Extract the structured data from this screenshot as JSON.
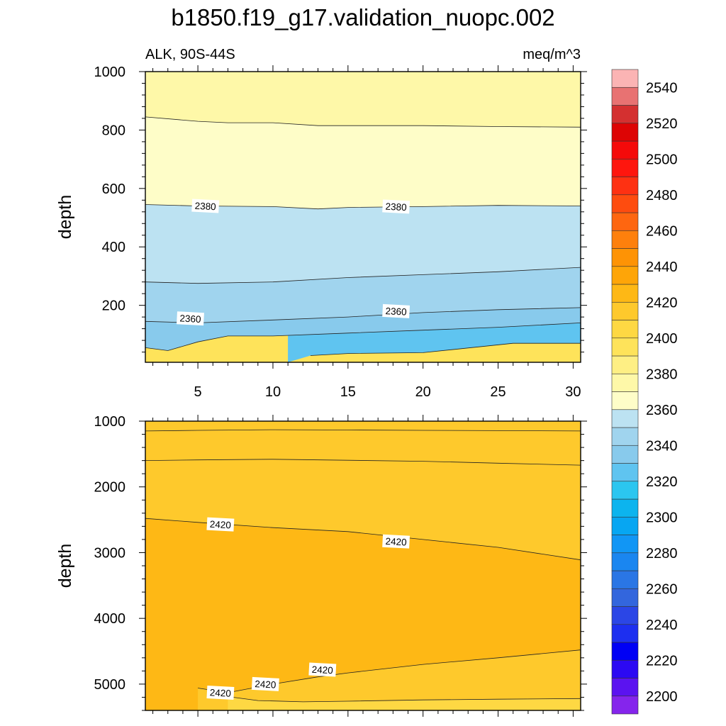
{
  "chart_data": {
    "type": "contour",
    "title": "b1850.f19_g17.validation_nuopc.002",
    "subtitle_left": "ALK, 90S-44S",
    "subtitle_right": "meq/m^3",
    "xlabel": "",
    "xlim": [
      1.5,
      30.5
    ],
    "x_ticks": [
      "5",
      "10",
      "15",
      "20",
      "25",
      "30"
    ],
    "colorbar": {
      "levels": [
        2200,
        2210,
        2220,
        2230,
        2240,
        2250,
        2260,
        2270,
        2280,
        2290,
        2300,
        2310,
        2320,
        2330,
        2340,
        2350,
        2360,
        2370,
        2380,
        2390,
        2400,
        2410,
        2420,
        2430,
        2440,
        2450,
        2460,
        2470,
        2480,
        2490,
        2500,
        2510,
        2520,
        2530,
        2540,
        2550
      ],
      "colors": [
        "#8525ec",
        "#5b13f0",
        "#2c09f3",
        "#0000f5",
        "#1d2ff0",
        "#2b46e6",
        "#3366dd",
        "#2a76e5",
        "#1a86f0",
        "#1196f5",
        "#07a6f2",
        "#0cb4ee",
        "#2bc6f0",
        "#5fc4f0",
        "#88caec",
        "#a0d4ee",
        "#bce2f2",
        "#fefdc8",
        "#fef8a8",
        "#feef84",
        "#fee35a",
        "#fed843",
        "#fec92c",
        "#feb815",
        "#fea508",
        "#fe9305",
        "#fe800c",
        "#fe6610",
        "#fe4c0f",
        "#fe3112",
        "#fe160e",
        "#f50a0a",
        "#dd0404",
        "#d43030",
        "#e87272",
        "#fbb4b4"
      ],
      "tick_labels": [
        "2200",
        "2220",
        "2240",
        "2260",
        "2280",
        "2300",
        "2320",
        "2340",
        "2360",
        "2380",
        "2400",
        "2420",
        "2440",
        "2460",
        "2480",
        "2500",
        "2520",
        "2540"
      ]
    },
    "panels": [
      {
        "name": "upper",
        "ylabel": "depth",
        "ylim": [
          1000,
          5
        ],
        "y_ticks": [
          "200",
          "400",
          "600",
          "800",
          "1000"
        ],
        "y_tick_values": [
          200,
          400,
          600,
          800,
          1000
        ],
        "x_tick_labels_shown": true,
        "base_color": "#fee35a",
        "contours": [
          {
            "value": 2345,
            "color": "#5fc4f0",
            "points": [
              [
                11,
                5
              ],
              [
                12.5,
                28
              ],
              [
                15,
                35
              ],
              [
                20,
                38
              ],
              [
                26,
                70
              ],
              [
                30.5,
                70
              ]
            ]
          },
          {
            "value": 2350,
            "color": "#88caec",
            "points": [
              [
                1.5,
                55
              ],
              [
                3,
                45
              ],
              [
                5,
                75
              ],
              [
                7,
                95
              ],
              [
                10,
                95
              ],
              [
                15,
                105
              ],
              [
                20,
                115
              ],
              [
                25,
                125
              ],
              [
                30.5,
                140
              ]
            ]
          },
          {
            "value": 2360,
            "color": "#a0d4ee",
            "points": [
              [
                1.5,
                145
              ],
              [
                5,
                140
              ],
              [
                10,
                150
              ],
              [
                15,
                160
              ],
              [
                20,
                175
              ],
              [
                25,
                185
              ],
              [
                30.5,
                192
              ]
            ]
          },
          {
            "value": 2370,
            "color": "#bce2f2",
            "points": [
              [
                1.5,
                280
              ],
              [
                5,
                275
              ],
              [
                10,
                280
              ],
              [
                15,
                295
              ],
              [
                20,
                305
              ],
              [
                25,
                315
              ],
              [
                30.5,
                330
              ]
            ]
          },
          {
            "value": 2380,
            "color": "#fefdc8",
            "points": [
              [
                1.5,
                545
              ],
              [
                5,
                540
              ],
              [
                10,
                538
              ],
              [
                13,
                530
              ],
              [
                15,
                535
              ],
              [
                20,
                538
              ],
              [
                25,
                542
              ],
              [
                30.5,
                540
              ]
            ]
          },
          {
            "value": 2390,
            "color": "#fef8a8",
            "points": [
              [
                1.5,
                845
              ],
              [
                5,
                830
              ],
              [
                7,
                825
              ],
              [
                10,
                825
              ],
              [
                13,
                815
              ],
              [
                15,
                815
              ],
              [
                20,
                815
              ],
              [
                25,
                812
              ],
              [
                30.5,
                810
              ]
            ]
          }
        ],
        "contour_labels": [
          {
            "text": "2360",
            "x": 4.5,
            "y": 155
          },
          {
            "text": "2360",
            "x": 18.2,
            "y": 180
          },
          {
            "text": "2380",
            "x": 5.5,
            "y": 540
          },
          {
            "text": "2380",
            "x": 18.2,
            "y": 538
          }
        ]
      },
      {
        "name": "lower",
        "ylabel": "depth",
        "ylim": [
          1000,
          5400
        ],
        "y_ticks": [
          "1000",
          "2000",
          "3000",
          "4000",
          "5000"
        ],
        "y_tick_values": [
          1000,
          2000,
          3000,
          4000,
          5000
        ],
        "x_tick_labels_shown": false,
        "base_color": "#feb815",
        "contours": [
          {
            "value": 2400,
            "color": "#fee35a",
            "points": [
              [
                1.5,
                1150
              ],
              [
                5,
                1140
              ],
              [
                10,
                1130
              ],
              [
                15,
                1135
              ],
              [
                20,
                1140
              ],
              [
                25,
                1145
              ],
              [
                30.5,
                1150
              ]
            ]
          },
          {
            "value": 2410,
            "color": "#fed843",
            "points": [
              [
                1.5,
                1600
              ],
              [
                5,
                1590
              ],
              [
                10,
                1580
              ],
              [
                15,
                1595
              ],
              [
                20,
                1610
              ],
              [
                25,
                1640
              ],
              [
                30.5,
                1670
              ]
            ]
          },
          {
            "value": 2420,
            "color": "#fec92c",
            "points": [
              [
                1.5,
                2480
              ],
              [
                5,
                2540
              ],
              [
                10,
                2620
              ],
              [
                15,
                2680
              ],
              [
                20,
                2800
              ],
              [
                25,
                2920
              ],
              [
                30.5,
                3110
              ]
            ]
          },
          {
            "value": 2420,
            "color": "#fec92c",
            "points": [
              [
                5,
                5060
              ],
              [
                7,
                5130
              ],
              [
                10,
                5000
              ],
              [
                13,
                4890
              ],
              [
                15,
                4830
              ],
              [
                20,
                4700
              ],
              [
                25,
                4600
              ],
              [
                30.5,
                4480
              ],
              [
                30.5,
                5400
              ],
              [
                5,
                5400
              ]
            ]
          },
          {
            "value": 2415,
            "color": "#fed843",
            "points": [
              [
                7,
                5190
              ],
              [
                9,
                5250
              ],
              [
                12,
                5270
              ],
              [
                15,
                5260
              ],
              [
                20,
                5240
              ],
              [
                25,
                5230
              ],
              [
                30.5,
                5220
              ],
              [
                30.5,
                5400
              ],
              [
                7,
                5400
              ]
            ]
          }
        ],
        "contour_labels": [
          {
            "text": "2420",
            "x": 6.5,
            "y": 2570
          },
          {
            "text": "2420",
            "x": 18.2,
            "y": 2830
          },
          {
            "text": "2420",
            "x": 13.3,
            "y": 4780
          },
          {
            "text": "2420",
            "x": 9.5,
            "y": 5000
          },
          {
            "text": "2420",
            "x": 6.5,
            "y": 5130
          }
        ]
      }
    ]
  }
}
